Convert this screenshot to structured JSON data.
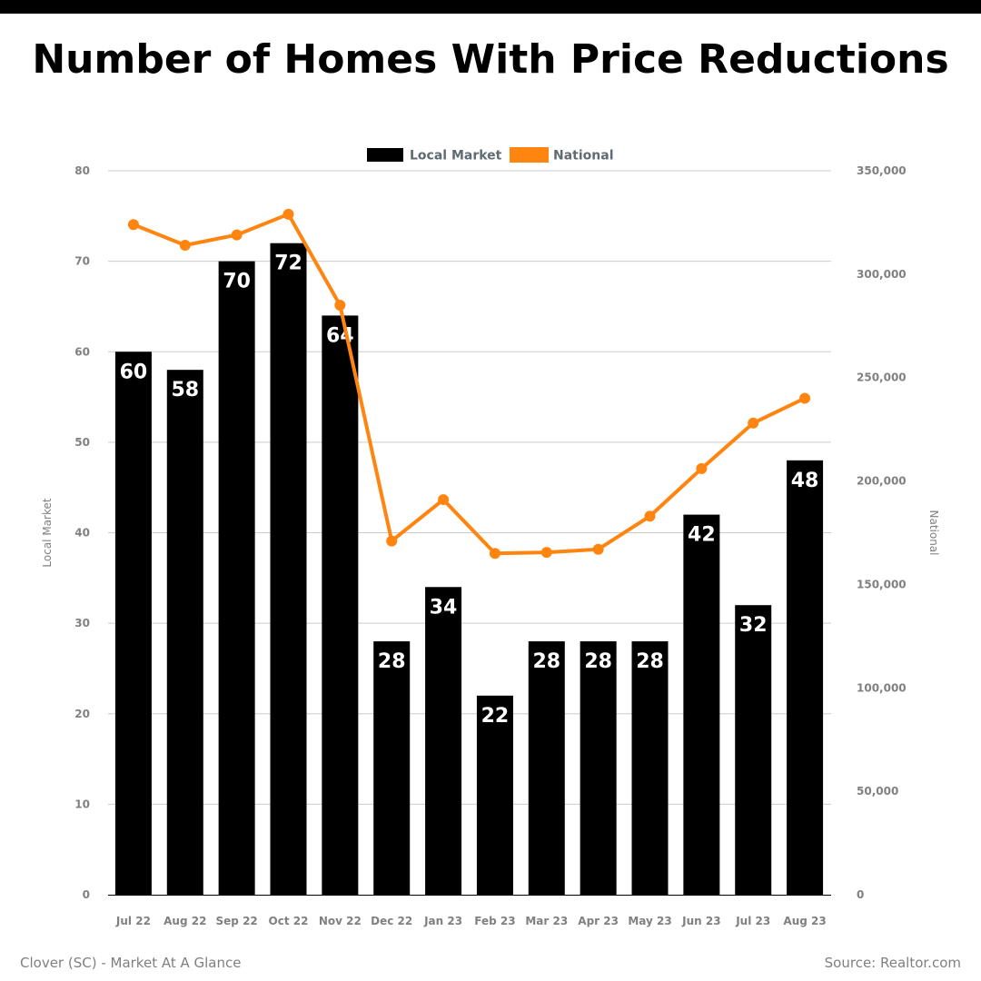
{
  "title": "Number of Homes With Price Reductions",
  "footer": {
    "left": "Clover (SC) - Market At A Glance",
    "right": "Source: Realtor.com"
  },
  "colors": {
    "local": "#000000",
    "national": "#FF8510",
    "grid": "#cccccc",
    "tick_text": "#808080",
    "legend_text": "#5f6b73"
  },
  "chart_data": {
    "type": "bar",
    "categories": [
      "Jul 22",
      "Aug 22",
      "Sep 22",
      "Oct 22",
      "Nov 22",
      "Dec 22",
      "Jan 23",
      "Feb 23",
      "Mar 23",
      "Apr 23",
      "May 23",
      "Jun 23",
      "Jul 23",
      "Aug 23"
    ],
    "series": [
      {
        "name": "Local Market",
        "type": "bar",
        "axis": "left",
        "values": [
          60,
          58,
          70,
          72,
          64,
          28,
          34,
          22,
          28,
          28,
          28,
          42,
          32,
          48
        ],
        "data_labels": true
      },
      {
        "name": "National",
        "type": "line",
        "axis": "right",
        "values": [
          324000,
          314000,
          319000,
          329000,
          285000,
          171000,
          191000,
          165000,
          165500,
          167000,
          183000,
          206000,
          228000,
          240000
        ]
      }
    ],
    "y_left": {
      "label": "Local Market",
      "range": [
        0,
        80
      ],
      "ticks": [
        0,
        10,
        20,
        30,
        40,
        50,
        60,
        70,
        80
      ],
      "tick_labels": [
        "0",
        "10",
        "20",
        "30",
        "40",
        "50",
        "60",
        "70",
        "80"
      ]
    },
    "y_right": {
      "label": "National",
      "range": [
        0,
        350000
      ],
      "ticks": [
        0,
        50000,
        100000,
        150000,
        200000,
        250000,
        300000,
        350000
      ],
      "tick_labels": [
        "0",
        "50,000",
        "100,000",
        "150,000",
        "200,000",
        "250,000",
        "300,000",
        "350,000"
      ]
    },
    "grid": true,
    "legend": "top-center"
  }
}
